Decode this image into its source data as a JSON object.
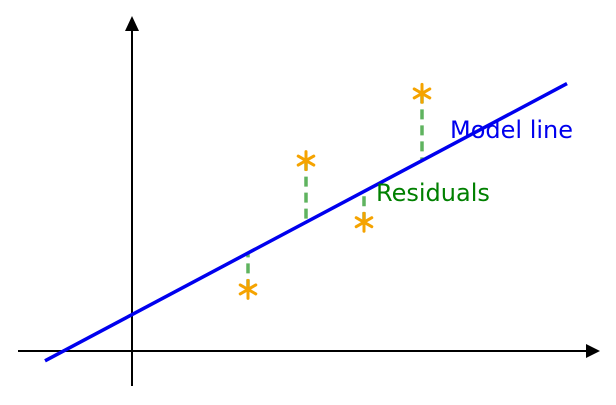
{
  "labels": {
    "model_line": "Model line",
    "residuals": "Residuals"
  },
  "colors": {
    "axes": "#000000",
    "model_line": "#0000ee",
    "residuals": "#5fb35f",
    "points": "#f5a300",
    "model_label": "#0000ee",
    "residuals_label": "#008000"
  },
  "model": {
    "intercept": 0.65,
    "slope": 0.55
  },
  "points": [
    {
      "x": 2,
      "y": 1.1
    },
    {
      "x": 3,
      "y": 3.4
    },
    {
      "x": 4,
      "y": 2.3
    },
    {
      "x": 5,
      "y": 4.6
    }
  ]
}
